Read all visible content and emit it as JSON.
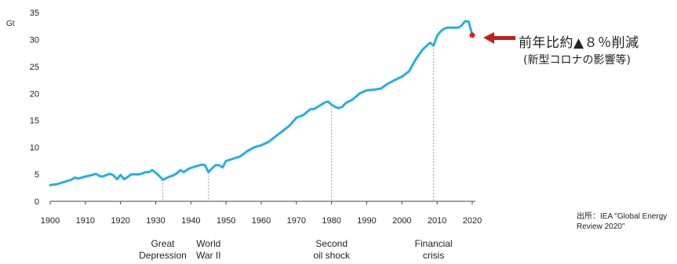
{
  "chart_data": {
    "type": "line",
    "ylabel": "Gt",
    "ylim": [
      0,
      35
    ],
    "xlim": [
      1900,
      2020
    ],
    "y_ticks": [
      0,
      5,
      10,
      15,
      20,
      25,
      30,
      35
    ],
    "x_ticks": [
      1900,
      1910,
      1920,
      1930,
      1940,
      1950,
      1960,
      1970,
      1980,
      1990,
      2000,
      2010,
      2020
    ],
    "grid": false,
    "line_color": "#29aee0",
    "highlight_color": "#e0241b",
    "x": [
      1900,
      1902,
      1904,
      1906,
      1907,
      1908,
      1910,
      1912,
      1913,
      1914,
      1915,
      1916,
      1917,
      1918,
      1919,
      1920,
      1921,
      1922,
      1923,
      1924,
      1925,
      1926,
      1927,
      1928,
      1929,
      1930,
      1931,
      1932,
      1933,
      1934,
      1935,
      1936,
      1937,
      1938,
      1939,
      1940,
      1941,
      1942,
      1943,
      1944,
      1945,
      1946,
      1947,
      1948,
      1949,
      1950,
      1952,
      1954,
      1956,
      1958,
      1960,
      1962,
      1964,
      1966,
      1968,
      1970,
      1972,
      1974,
      1975,
      1976,
      1978,
      1979,
      1980,
      1981,
      1982,
      1983,
      1984,
      1986,
      1988,
      1990,
      1992,
      1994,
      1996,
      1998,
      2000,
      2002,
      2004,
      2006,
      2008,
      2009,
      2010,
      2011,
      2012,
      2013,
      2014,
      2016,
      2017,
      2018,
      2019
    ],
    "values": [
      3.0,
      3.2,
      3.6,
      4.0,
      4.4,
      4.2,
      4.6,
      4.9,
      5.1,
      4.7,
      4.6,
      4.9,
      5.1,
      4.8,
      4.1,
      4.9,
      4.1,
      4.5,
      5.0,
      5.0,
      5.0,
      5.1,
      5.4,
      5.4,
      5.8,
      5.3,
      4.7,
      4.0,
      4.3,
      4.6,
      4.8,
      5.2,
      5.8,
      5.4,
      5.9,
      6.2,
      6.4,
      6.6,
      6.8,
      6.7,
      5.4,
      6.1,
      6.7,
      6.7,
      6.3,
      7.5,
      7.9,
      8.3,
      9.3,
      10.0,
      10.4,
      11.0,
      12.0,
      13.0,
      14.0,
      15.5,
      16.0,
      17.1,
      17.1,
      17.5,
      18.3,
      18.5,
      17.9,
      17.5,
      17.3,
      17.5,
      18.2,
      18.9,
      20.0,
      20.6,
      20.7,
      20.9,
      21.8,
      22.5,
      23.1,
      24.1,
      26.4,
      28.2,
      29.4,
      28.9,
      30.7,
      31.5,
      32.0,
      32.2,
      32.2,
      32.2,
      32.6,
      33.4,
      33.3
    ],
    "highlight_point": {
      "x": 2020,
      "y": 30.8
    },
    "events": [
      {
        "x": 1932,
        "lines": [
          "Great",
          "Depression"
        ]
      },
      {
        "x": 1945,
        "lines": [
          "World",
          "War II"
        ]
      },
      {
        "x": 1980,
        "lines": [
          "Second",
          "oil shock"
        ]
      },
      {
        "x": 2009,
        "lines": [
          "Financial",
          "crisis"
        ]
      }
    ]
  },
  "annotation": {
    "main": "前年比約▲８％削減",
    "sub": "(新型コロナの影響等)"
  },
  "source": {
    "line1": "出所：IEA \"Global Energy",
    "line2": "Review 2020\""
  }
}
